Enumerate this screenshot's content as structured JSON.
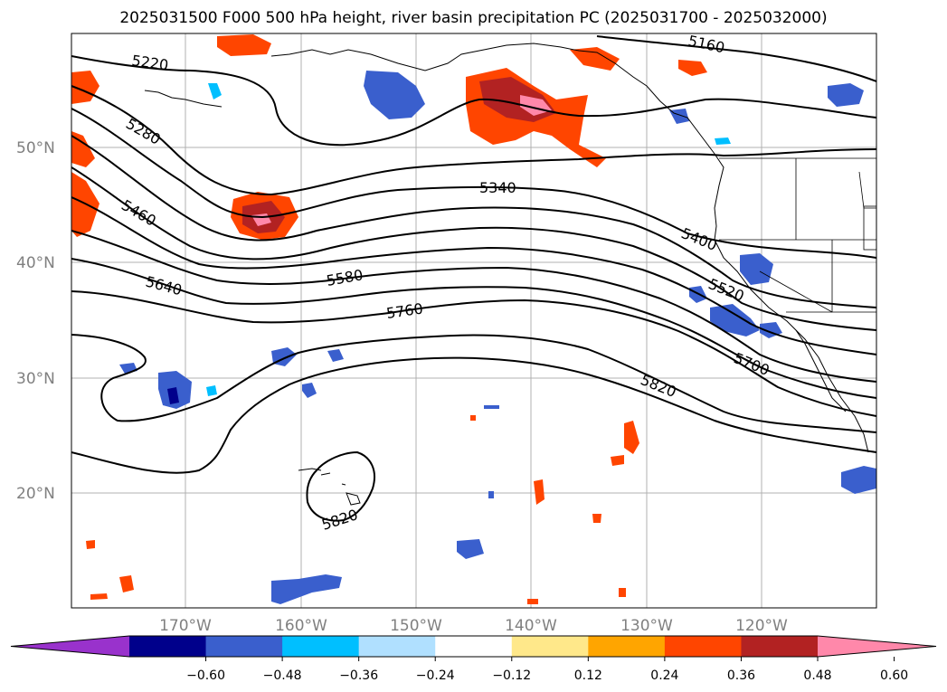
{
  "title": "2025031500 F000 500 hPa height, river basin precipitation PC (2025031700 - 2025032000)",
  "map": {
    "lat_labels": [
      "50°N",
      "40°N",
      "30°N",
      "20°N"
    ],
    "lon_labels": [
      "170°W",
      "160°W",
      "150°W",
      "140°W",
      "130°W",
      "120°W"
    ],
    "gridlines": true
  },
  "contours": {
    "color": "#000000",
    "labels": [
      "5160",
      "5220",
      "5280",
      "5340",
      "5400",
      "5460",
      "5520",
      "5580",
      "5640",
      "5700",
      "5760",
      "5820",
      "5820"
    ]
  },
  "colorbar": {
    "tick_labels": [
      "−0.60",
      "−0.48",
      "−0.36",
      "−0.24",
      "−0.12",
      "0.12",
      "0.24",
      "0.36",
      "0.48",
      "0.60"
    ],
    "colors": [
      "#9932cc",
      "#00008b",
      "#3a5fcd",
      "#00bfff",
      "#b0e0ff",
      "#ffffff",
      "#ffe88a",
      "#ffa500",
      "#ff4500",
      "#b22222",
      "#ff88aa"
    ]
  }
}
